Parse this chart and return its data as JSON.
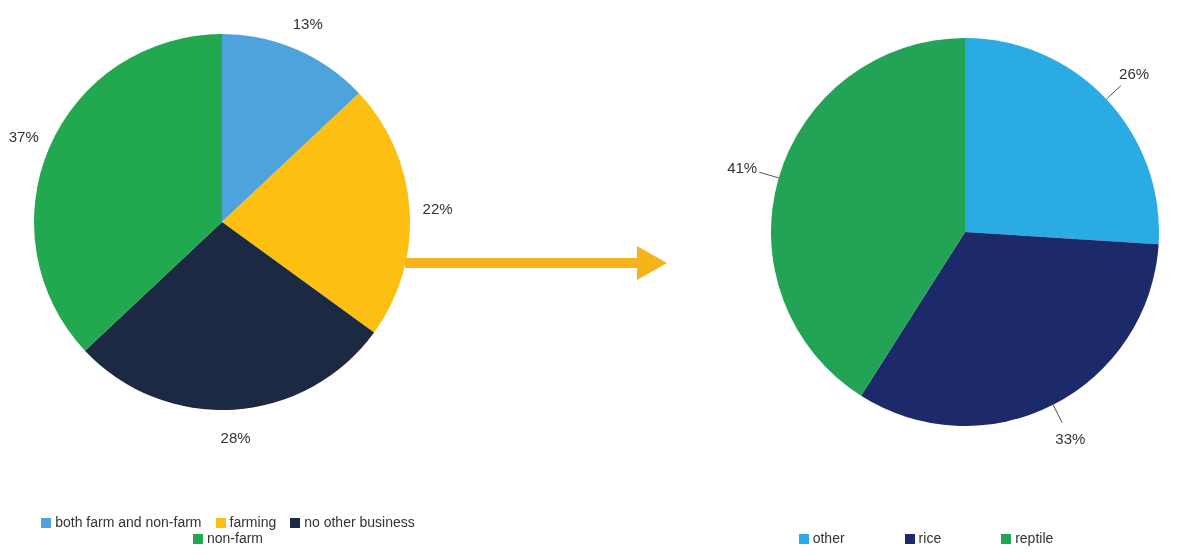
{
  "chart_data": [
    {
      "type": "pie",
      "categories": [
        "both farm and non-farm",
        "farming",
        "no other business",
        "non-farm"
      ],
      "values": [
        13,
        22,
        28,
        37
      ],
      "value_labels": [
        "13%",
        "22%",
        "28%",
        "37%"
      ],
      "colors": [
        "#4fa3dc",
        "#fdbf12",
        "#1c2942",
        "#22a84e"
      ],
      "legend": "bottom"
    },
    {
      "type": "pie",
      "categories": [
        "other",
        "rice",
        "reptile"
      ],
      "values": [
        26,
        33,
        41
      ],
      "value_labels": [
        "26%",
        "33%",
        "41%"
      ],
      "colors": [
        "#2aabe3",
        "#1d2a6a",
        "#22a356"
      ],
      "legend": "bottom"
    }
  ]
}
